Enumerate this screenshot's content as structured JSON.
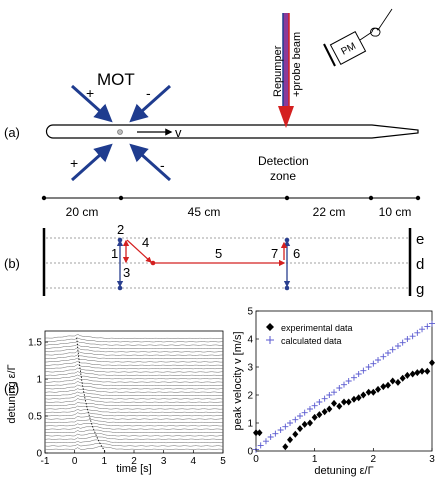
{
  "panel_a": {
    "label": "(a)",
    "mot_label": "MOT",
    "velocity_label": "v",
    "beam_label_line1": "Repumper",
    "beam_label_line2": "+probe beam",
    "detector_label": "PM",
    "detection_line1": "Detection",
    "detection_line2": "zone",
    "polarization_signs": [
      "+",
      "-",
      "+",
      "-"
    ],
    "distances": [
      "20 cm",
      "45 cm",
      "22 cm",
      "10 cm"
    ],
    "colors": {
      "beam_red": "#d42020",
      "beam_blue": "#1f3c8f",
      "laser_mix": "#8a3a9a"
    }
  },
  "panel_b": {
    "label": "(b)",
    "level_labels": [
      "e",
      "d",
      "g"
    ],
    "step_labels": [
      "1",
      "2",
      "3",
      "4",
      "5",
      "6",
      "7"
    ],
    "colors": {
      "blue": "#2a3f8f",
      "red": "#d42020"
    }
  },
  "panel_c": {
    "label": "(c)",
    "chart_data": [
      {
        "type": "line",
        "xlabel": "time [s]",
        "ylabel": "detuning ε/Γ",
        "xlim": [
          -1,
          5
        ],
        "ylim": [
          0,
          1.65
        ],
        "xticks": [
          "-1",
          "0",
          "1",
          "2",
          "3",
          "4",
          "5"
        ],
        "yticks": [
          "0",
          "0.5",
          "1",
          "1.5"
        ],
        "series_count": 34,
        "grid": false
      },
      {
        "type": "scatter",
        "xlabel": "detuning ε/Γ",
        "ylabel": "peak velocity v [m/s]",
        "xlim": [
          0,
          3
        ],
        "ylim": [
          0,
          5
        ],
        "xticks": [
          "0",
          "1",
          "2",
          "3"
        ],
        "yticks": [
          "0",
          "1",
          "2",
          "3",
          "4",
          "5"
        ],
        "legend_position": "top-left",
        "series": [
          {
            "name": "experimental data",
            "marker": "diamond",
            "color": "#000000",
            "x": [
              0.0,
              0.06,
              0.5,
              0.58,
              0.67,
              0.75,
              0.83,
              0.92,
              1.0,
              1.08,
              1.17,
              1.25,
              1.33,
              1.42,
              1.5,
              1.58,
              1.67,
              1.75,
              1.83,
              1.92,
              2.0,
              2.08,
              2.17,
              2.25,
              2.33,
              2.42,
              2.5,
              2.58,
              2.67,
              2.75,
              2.83,
              2.92,
              3.0
            ],
            "y": [
              0.65,
              0.65,
              0.15,
              0.4,
              0.6,
              0.8,
              0.95,
              1.0,
              1.2,
              1.3,
              1.4,
              1.5,
              1.7,
              1.6,
              1.75,
              1.75,
              1.85,
              1.9,
              2.0,
              2.1,
              2.1,
              2.2,
              2.3,
              2.35,
              2.5,
              2.45,
              2.6,
              2.7,
              2.75,
              2.8,
              2.85,
              2.85,
              3.15
            ]
          },
          {
            "name": "calculated data",
            "marker": "plus",
            "color": "#5a5ad0",
            "x": [
              0.0,
              0.08,
              0.17,
              0.25,
              0.33,
              0.42,
              0.5,
              0.58,
              0.67,
              0.75,
              0.83,
              0.92,
              1.0,
              1.08,
              1.17,
              1.25,
              1.33,
              1.42,
              1.5,
              1.58,
              1.67,
              1.75,
              1.83,
              1.92,
              2.0,
              2.08,
              2.17,
              2.25,
              2.33,
              2.42,
              2.5,
              2.58,
              2.67,
              2.75,
              2.83,
              2.92,
              3.0
            ],
            "y": [
              0.05,
              0.2,
              0.35,
              0.5,
              0.62,
              0.75,
              0.87,
              1.0,
              1.12,
              1.25,
              1.37,
              1.5,
              1.62,
              1.75,
              1.87,
              2.0,
              2.1,
              2.25,
              2.37,
              2.5,
              2.62,
              2.75,
              2.87,
              3.0,
              3.12,
              3.25,
              3.37,
              3.5,
              3.62,
              3.75,
              3.87,
              4.0,
              4.1,
              4.22,
              4.35,
              4.45,
              4.55
            ]
          }
        ]
      }
    ]
  }
}
